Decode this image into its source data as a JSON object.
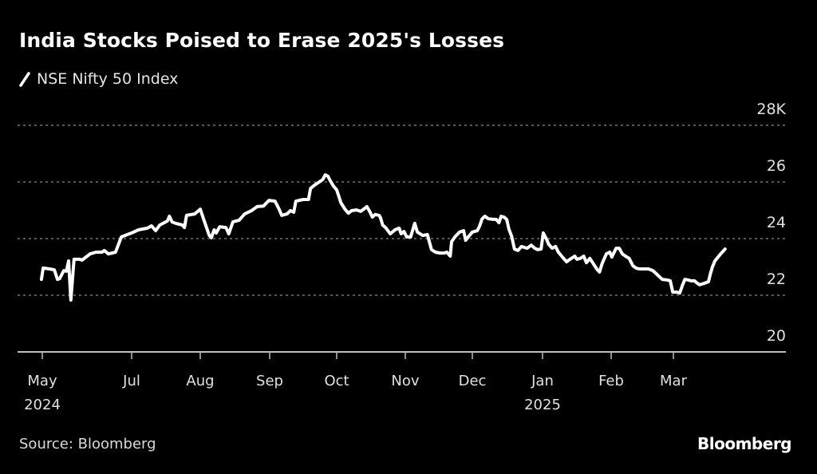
{
  "header": {
    "title": "India Stocks Poised to Erase 2025's Losses",
    "legend_label": "NSE Nifty 50 Index"
  },
  "footer": {
    "source": "Source: Bloomberg",
    "brand": "Bloomberg"
  },
  "colors": {
    "background": "#000000",
    "line": "#ffffff",
    "grid": "#8a8a8a",
    "axis": "#bdbdbd",
    "text": "#e0e0e0"
  },
  "chart_data": {
    "type": "line",
    "title": "India Stocks Poised to Erase 2025's Losses",
    "xlabel": "",
    "ylabel": "",
    "x_unit": "months since May 1, 2024",
    "y_unit": "index level (thousands)",
    "ylim": [
      20,
      28
    ],
    "xlim": [
      -1,
      12.4
    ],
    "grid": true,
    "legend_position": "top-left",
    "y_ticks": [
      {
        "value": 20,
        "label": "20"
      },
      {
        "value": 22,
        "label": "22"
      },
      {
        "value": 24,
        "label": "24"
      },
      {
        "value": 26,
        "label": "26"
      },
      {
        "value": 28,
        "label": "28K"
      }
    ],
    "x_ticks": [
      {
        "value": 0,
        "label": "May",
        "sublabel": "2024"
      },
      {
        "value": 2,
        "label": "Jul",
        "sublabel": ""
      },
      {
        "value": 3,
        "label": "Aug",
        "sublabel": ""
      },
      {
        "value": 4,
        "label": "Sep",
        "sublabel": ""
      },
      {
        "value": 5,
        "label": "Oct",
        "sublabel": ""
      },
      {
        "value": 6,
        "label": "Nov",
        "sublabel": ""
      },
      {
        "value": 7,
        "label": "Dec",
        "sublabel": ""
      },
      {
        "value": 8,
        "label": "Jan",
        "sublabel": "2025"
      },
      {
        "value": 9,
        "label": "Feb",
        "sublabel": ""
      },
      {
        "value": 10,
        "label": "Mar",
        "sublabel": ""
      }
    ],
    "series": [
      {
        "name": "NSE Nifty 50 Index",
        "points": [
          [
            -0.02,
            22.56
          ],
          [
            0.02,
            22.96
          ],
          [
            0.16,
            22.93
          ],
          [
            0.27,
            22.9
          ],
          [
            0.34,
            22.56
          ],
          [
            0.39,
            22.59
          ],
          [
            0.48,
            22.87
          ],
          [
            0.54,
            22.85
          ],
          [
            0.59,
            23.21
          ],
          [
            0.64,
            21.83
          ],
          [
            0.71,
            23.27
          ],
          [
            0.84,
            23.27
          ],
          [
            0.89,
            23.24
          ],
          [
            1.07,
            23.46
          ],
          [
            1.2,
            23.52
          ],
          [
            1.34,
            23.52
          ],
          [
            1.39,
            23.58
          ],
          [
            1.48,
            23.46
          ],
          [
            1.64,
            23.52
          ],
          [
            1.77,
            24.06
          ],
          [
            2.0,
            24.2
          ],
          [
            2.1,
            24.31
          ],
          [
            2.23,
            24.37
          ],
          [
            2.29,
            24.45
          ],
          [
            2.35,
            24.28
          ],
          [
            2.41,
            24.48
          ],
          [
            2.52,
            24.62
          ],
          [
            2.55,
            24.79
          ],
          [
            2.59,
            24.59
          ],
          [
            2.64,
            24.54
          ],
          [
            2.74,
            24.48
          ],
          [
            2.77,
            24.39
          ],
          [
            2.8,
            24.82
          ],
          [
            2.92,
            24.87
          ],
          [
            3.0,
            25.04
          ],
          [
            3.05,
            24.68
          ],
          [
            3.13,
            24.11
          ],
          [
            3.16,
            24.03
          ],
          [
            3.2,
            24.31
          ],
          [
            3.23,
            24.2
          ],
          [
            3.28,
            24.42
          ],
          [
            3.37,
            24.39
          ],
          [
            3.41,
            24.17
          ],
          [
            3.47,
            24.59
          ],
          [
            3.56,
            24.65
          ],
          [
            3.64,
            24.87
          ],
          [
            3.74,
            24.99
          ],
          [
            3.82,
            25.13
          ],
          [
            3.91,
            25.15
          ],
          [
            3.99,
            25.35
          ],
          [
            4.08,
            25.32
          ],
          [
            4.14,
            25.04
          ],
          [
            4.18,
            24.82
          ],
          [
            4.26,
            24.87
          ],
          [
            4.31,
            24.99
          ],
          [
            4.36,
            24.93
          ],
          [
            4.39,
            25.32
          ],
          [
            4.5,
            25.38
          ],
          [
            4.58,
            25.38
          ],
          [
            4.61,
            25.77
          ],
          [
            4.67,
            25.89
          ],
          [
            4.74,
            26.0
          ],
          [
            4.79,
            26.08
          ],
          [
            4.83,
            26.25
          ],
          [
            4.87,
            26.2
          ],
          [
            4.9,
            26.06
          ],
          [
            4.95,
            25.86
          ],
          [
            5.0,
            25.72
          ],
          [
            5.06,
            25.27
          ],
          [
            5.12,
            25.04
          ],
          [
            5.17,
            24.9
          ],
          [
            5.22,
            24.99
          ],
          [
            5.29,
            25.01
          ],
          [
            5.35,
            24.96
          ],
          [
            5.41,
            25.07
          ],
          [
            5.44,
            25.13
          ],
          [
            5.48,
            24.96
          ],
          [
            5.52,
            24.76
          ],
          [
            5.56,
            24.85
          ],
          [
            5.62,
            24.82
          ],
          [
            5.64,
            24.73
          ],
          [
            5.67,
            24.48
          ],
          [
            5.72,
            24.37
          ],
          [
            5.78,
            24.17
          ],
          [
            5.85,
            24.31
          ],
          [
            5.91,
            24.37
          ],
          [
            5.94,
            24.17
          ],
          [
            5.98,
            24.25
          ],
          [
            6.02,
            24.06
          ],
          [
            6.08,
            24.06
          ],
          [
            6.14,
            24.54
          ],
          [
            6.18,
            24.23
          ],
          [
            6.26,
            24.11
          ],
          [
            6.33,
            24.14
          ],
          [
            6.39,
            23.61
          ],
          [
            6.45,
            23.52
          ],
          [
            6.52,
            23.49
          ],
          [
            6.58,
            23.49
          ],
          [
            6.62,
            23.52
          ],
          [
            6.67,
            23.38
          ],
          [
            6.69,
            23.89
          ],
          [
            6.74,
            24.06
          ],
          [
            6.81,
            24.23
          ],
          [
            6.87,
            24.28
          ],
          [
            6.9,
            23.94
          ],
          [
            6.94,
            24.06
          ],
          [
            7.0,
            24.23
          ],
          [
            7.07,
            24.28
          ],
          [
            7.1,
            24.42
          ],
          [
            7.14,
            24.7
          ],
          [
            7.18,
            24.79
          ],
          [
            7.23,
            24.7
          ],
          [
            7.3,
            24.68
          ],
          [
            7.34,
            24.68
          ],
          [
            7.38,
            24.56
          ],
          [
            7.41,
            24.79
          ],
          [
            7.45,
            24.76
          ],
          [
            7.49,
            24.68
          ],
          [
            7.52,
            24.34
          ],
          [
            7.56,
            24.08
          ],
          [
            7.6,
            23.63
          ],
          [
            7.65,
            23.58
          ],
          [
            7.7,
            23.72
          ],
          [
            7.78,
            23.66
          ],
          [
            7.84,
            23.77
          ],
          [
            7.89,
            23.66
          ],
          [
            7.93,
            23.61
          ],
          [
            7.98,
            23.63
          ],
          [
            8.01,
            24.2
          ],
          [
            8.06,
            23.97
          ],
          [
            8.09,
            23.8
          ],
          [
            8.14,
            23.66
          ],
          [
            8.19,
            23.72
          ],
          [
            8.23,
            23.52
          ],
          [
            8.29,
            23.35
          ],
          [
            8.35,
            23.18
          ],
          [
            8.4,
            23.27
          ],
          [
            8.47,
            23.38
          ],
          [
            8.5,
            23.27
          ],
          [
            8.55,
            23.3
          ],
          [
            8.6,
            23.38
          ],
          [
            8.64,
            23.15
          ],
          [
            8.69,
            23.3
          ],
          [
            8.73,
            23.15
          ],
          [
            8.79,
            22.93
          ],
          [
            8.83,
            22.82
          ],
          [
            8.87,
            23.13
          ],
          [
            8.93,
            23.46
          ],
          [
            8.98,
            23.52
          ],
          [
            9.01,
            23.35
          ],
          [
            9.08,
            23.66
          ],
          [
            9.13,
            23.66
          ],
          [
            9.18,
            23.46
          ],
          [
            9.23,
            23.38
          ],
          [
            9.29,
            23.3
          ],
          [
            9.35,
            23.04
          ],
          [
            9.4,
            22.96
          ],
          [
            9.45,
            22.93
          ],
          [
            9.51,
            22.93
          ],
          [
            9.6,
            22.93
          ],
          [
            9.67,
            22.87
          ],
          [
            9.74,
            22.73
          ],
          [
            9.82,
            22.56
          ],
          [
            9.9,
            22.54
          ],
          [
            9.95,
            22.51
          ],
          [
            9.99,
            22.11
          ],
          [
            10.05,
            22.11
          ],
          [
            10.1,
            22.08
          ],
          [
            10.14,
            22.34
          ],
          [
            10.18,
            22.56
          ],
          [
            10.23,
            22.54
          ],
          [
            10.28,
            22.51
          ],
          [
            10.33,
            22.51
          ],
          [
            10.36,
            22.45
          ],
          [
            10.41,
            22.37
          ],
          [
            10.48,
            22.42
          ],
          [
            10.55,
            22.48
          ],
          [
            10.58,
            22.76
          ],
          [
            10.61,
            22.99
          ],
          [
            10.65,
            23.21
          ],
          [
            10.7,
            23.35
          ],
          [
            10.74,
            23.46
          ],
          [
            10.81,
            23.63
          ]
        ]
      }
    ]
  }
}
